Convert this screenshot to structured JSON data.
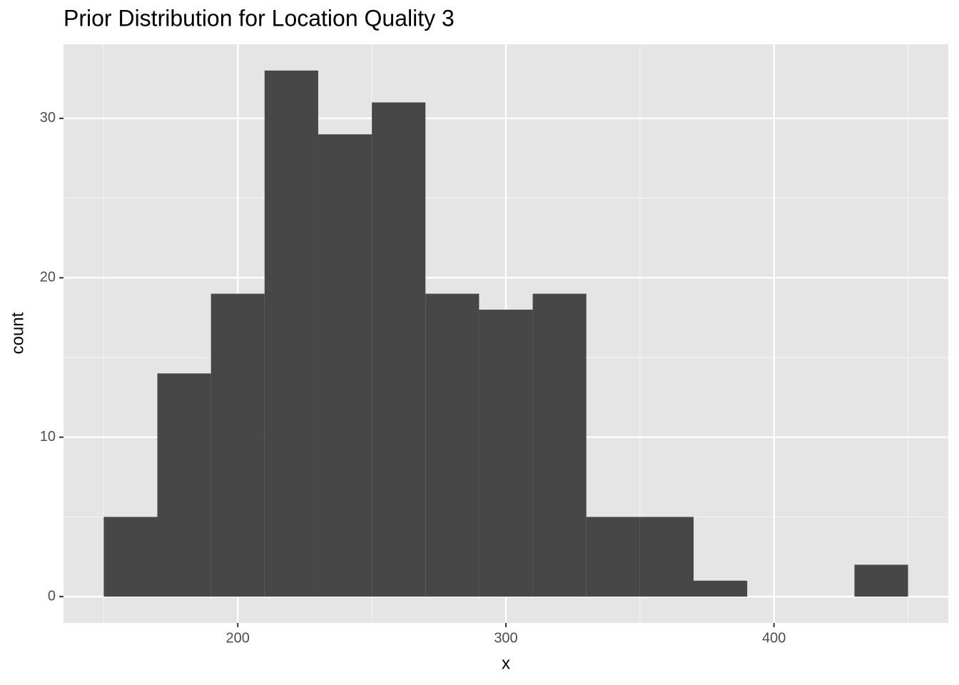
{
  "chart_data": {
    "type": "histogram",
    "title": "Prior Distribution for Location Quality 3",
    "x_label": "x",
    "y_label": "count",
    "bins": [
      150,
      170,
      190,
      210,
      230,
      250,
      270,
      290,
      310,
      330,
      350,
      370,
      390,
      410,
      430,
      450
    ],
    "values": [
      5,
      14,
      19,
      33,
      29,
      31,
      19,
      18,
      19,
      5,
      5,
      1,
      0,
      0,
      2
    ],
    "color": "#474747",
    "xlim": [
      135,
      465
    ],
    "ylim": [
      -1.65,
      34.65
    ],
    "xticks": [
      200,
      300,
      400
    ],
    "yticks": [
      0,
      10,
      20,
      30
    ],
    "xminor": [
      150,
      250,
      350,
      450
    ],
    "yminor": [
      5,
      15,
      25
    ],
    "grid": true,
    "panel_color": "#e5e5e5"
  }
}
